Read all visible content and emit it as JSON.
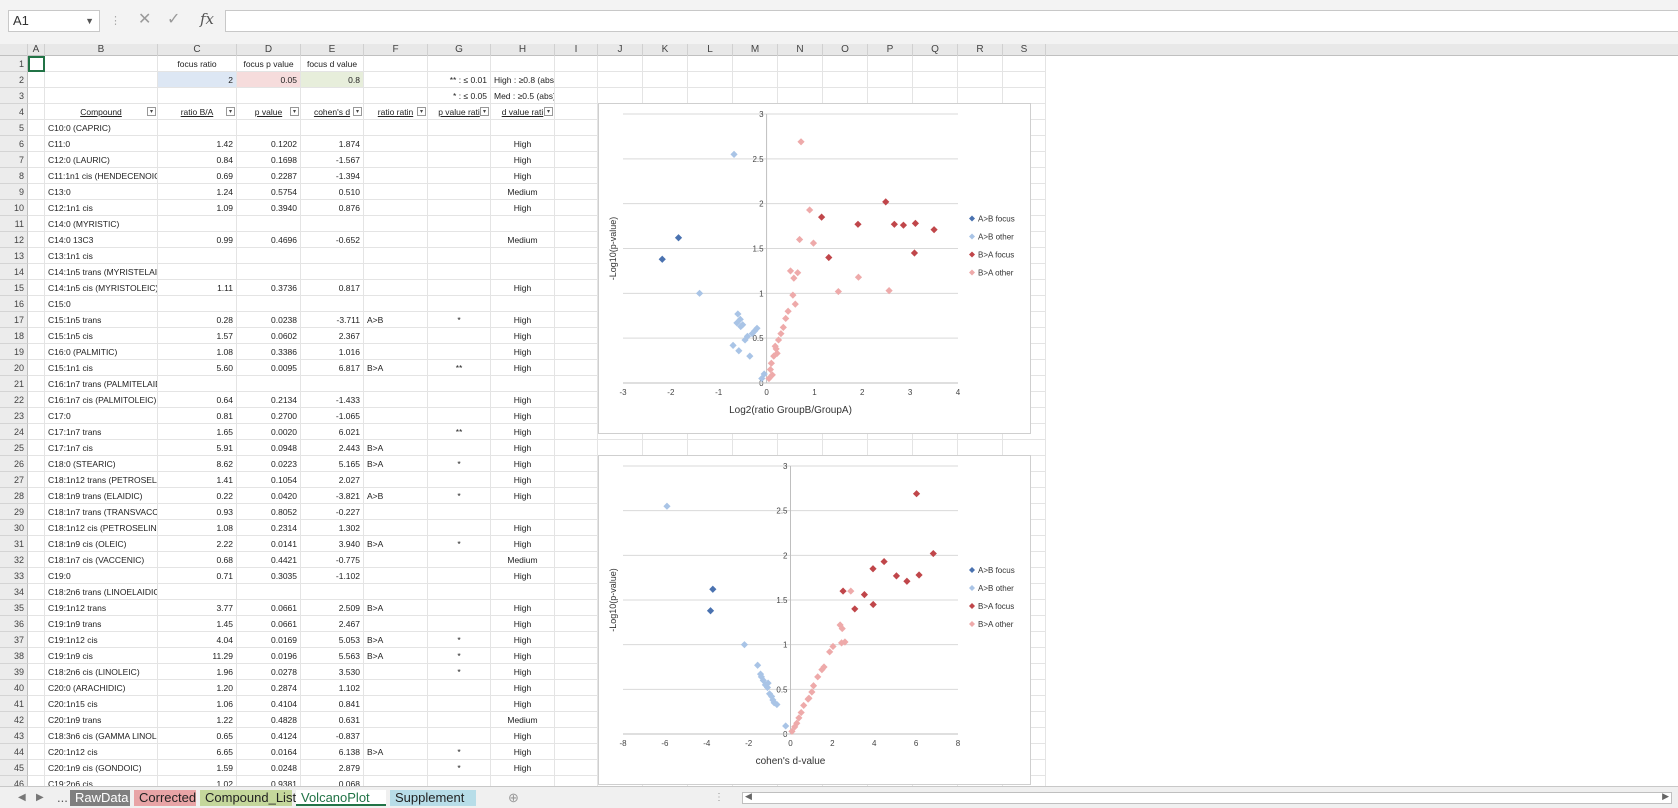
{
  "formula_bar": {
    "name_box": "A1",
    "cancel_icon": "✕",
    "enter_icon": "✓",
    "fx": "fx",
    "formula": ""
  },
  "columns": [
    "A",
    "B",
    "C",
    "D",
    "E",
    "F",
    "G",
    "H",
    "I",
    "J",
    "K",
    "L",
    "M",
    "N",
    "O",
    "P",
    "Q",
    "R",
    "S"
  ],
  "settings": {
    "focus_ratio_label": "focus ratio",
    "focus_p_label": "focus p value",
    "focus_d_label": "focus d value",
    "focus_ratio": "2",
    "focus_p": "0.05",
    "focus_d": "0.8",
    "legend_p1": "** : ≤ 0.01",
    "legend_p2": "* : ≤ 0.05",
    "legend_d1": "High : ≥0.8 (abs)",
    "legend_d2": "Med : ≥0.5 (abs)"
  },
  "colors": {
    "focus_ratio_bg": "#dde7f4",
    "focus_p_bg": "#f6dcdc",
    "focus_d_bg": "#e7eedb",
    "a_focus": "#4a72b0",
    "a_other": "#a9c4e6",
    "b_focus": "#c0464a",
    "b_other": "#eeaaaa"
  },
  "table": {
    "headers": [
      "Compound",
      "ratio B/A",
      "p value",
      "cohen's d",
      "ratio ratin",
      "p value rati",
      "d value rati"
    ],
    "rows": [
      [
        "C10:0 (CAPRIC)",
        "",
        "",
        "",
        "",
        "",
        ""
      ],
      [
        "C11:0",
        "1.42",
        "0.1202",
        "1.874",
        "",
        "",
        "High"
      ],
      [
        "C12:0 (LAURIC)",
        "0.84",
        "0.1698",
        "-1.567",
        "",
        "",
        "High"
      ],
      [
        "C11:1n1 cis (HENDECENOIC)",
        "0.69",
        "0.2287",
        "-1.394",
        "",
        "",
        "High"
      ],
      [
        "C13:0",
        "1.24",
        "0.5754",
        "0.510",
        "",
        "",
        "Medium"
      ],
      [
        "C12:1n1 cis",
        "1.09",
        "0.3940",
        "0.876",
        "",
        "",
        "High"
      ],
      [
        "C14:0 (MYRISTIC)",
        "",
        "",
        "",
        "",
        "",
        ""
      ],
      [
        "C14:0 13C3",
        "0.99",
        "0.4696",
        "-0.652",
        "",
        "",
        "Medium"
      ],
      [
        "C13:1n1 cis",
        "",
        "",
        "",
        "",
        "",
        ""
      ],
      [
        "C14:1n5 trans (MYRISTELAIDIC)",
        "",
        "",
        "",
        "",
        "",
        ""
      ],
      [
        "C14:1n5 cis (MYRISTOLEIC)",
        "1.11",
        "0.3736",
        "0.817",
        "",
        "",
        "High"
      ],
      [
        "C15:0",
        "",
        "",
        "",
        "",
        "",
        ""
      ],
      [
        "C15:1n5 trans",
        "0.28",
        "0.0238",
        "-3.711",
        "A>B",
        "*",
        "High"
      ],
      [
        "C15:1n5 cis",
        "1.57",
        "0.0602",
        "2.367",
        "",
        "",
        "High"
      ],
      [
        "C16:0 (PALMITIC)",
        "1.08",
        "0.3386",
        "1.016",
        "",
        "",
        "High"
      ],
      [
        "C15:1n1 cis",
        "5.60",
        "0.0095",
        "6.817",
        "B>A",
        "**",
        "High"
      ],
      [
        "C16:1n7 trans (PALMITELAIDIC)",
        "",
        "",
        "",
        "",
        "",
        ""
      ],
      [
        "C16:1n7 cis (PALMITOLEIC)",
        "0.64",
        "0.2134",
        "-1.433",
        "",
        "",
        "High"
      ],
      [
        "C17:0",
        "0.81",
        "0.2700",
        "-1.065",
        "",
        "",
        "High"
      ],
      [
        "C17:1n7 trans",
        "1.65",
        "0.0020",
        "6.021",
        "",
        "**",
        "High"
      ],
      [
        "C17:1n7 cis",
        "5.91",
        "0.0948",
        "2.443",
        "B>A",
        "",
        "High"
      ],
      [
        "C18:0 (STEARIC)",
        "8.62",
        "0.0223",
        "5.165",
        "B>A",
        "*",
        "High"
      ],
      [
        "C18:1n12 trans (PETROSELAIDIC)",
        "1.41",
        "0.1054",
        "2.027",
        "",
        "",
        "High"
      ],
      [
        "C18:1n9 trans (ELAIDIC)",
        "0.22",
        "0.0420",
        "-3.821",
        "A>B",
        "*",
        "High"
      ],
      [
        "C18:1n7 trans (TRANSVACCENIC)",
        "0.93",
        "0.8052",
        "-0.227",
        "",
        "",
        ""
      ],
      [
        "C18:1n12 cis (PETROSELINIC)",
        "1.08",
        "0.2314",
        "1.302",
        "",
        "",
        "High"
      ],
      [
        "C18:1n9 cis (OLEIC)",
        "2.22",
        "0.0141",
        "3.940",
        "B>A",
        "*",
        "High"
      ],
      [
        "C18:1n7 cis (VACCENIC)",
        "0.68",
        "0.4421",
        "-0.775",
        "",
        "",
        "Medium"
      ],
      [
        "C19:0",
        "0.71",
        "0.3035",
        "-1.102",
        "",
        "",
        "High"
      ],
      [
        "C18:2n6 trans (LINOELAIDIC)",
        "",
        "",
        "",
        "",
        "",
        ""
      ],
      [
        "C19:1n12 trans",
        "3.77",
        "0.0661",
        "2.509",
        "B>A",
        "",
        "High"
      ],
      [
        "C19:1n9 trans",
        "1.45",
        "0.0661",
        "2.467",
        "",
        "",
        "High"
      ],
      [
        "C19:1n12 cis",
        "4.04",
        "0.0169",
        "5.053",
        "B>A",
        "*",
        "High"
      ],
      [
        "C19:1n9 cis",
        "11.29",
        "0.0196",
        "5.563",
        "B>A",
        "*",
        "High"
      ],
      [
        "C18:2n6 cis (LINOLEIC)",
        "1.96",
        "0.0278",
        "3.530",
        "",
        "*",
        "High"
      ],
      [
        "C20:0 (ARACHIDIC)",
        "1.20",
        "0.2874",
        "1.102",
        "",
        "",
        "High"
      ],
      [
        "C20:1n15 cis",
        "1.06",
        "0.4104",
        "0.841",
        "",
        "",
        "High"
      ],
      [
        "C20:1n9 trans",
        "1.22",
        "0.4828",
        "0.631",
        "",
        "",
        "Medium"
      ],
      [
        "C18:3n6 cis (GAMMA LINOLENIC)",
        "0.65",
        "0.4124",
        "-0.837",
        "",
        "",
        "High"
      ],
      [
        "C20:1n12 cis",
        "6.65",
        "0.0164",
        "6.138",
        "B>A",
        "*",
        "High"
      ],
      [
        "C20:1n9 cis (GONDOIC)",
        "1.59",
        "0.0248",
        "2.879",
        "",
        "*",
        "High"
      ],
      [
        "C19:2n6 cis",
        "1.02",
        "0.9381",
        "0.068",
        "",
        "",
        ""
      ]
    ]
  },
  "chart_data": [
    {
      "type": "scatter",
      "title": "",
      "xlabel": "Log2(ratio GroupB/GroupA)",
      "ylabel": "-Log10(p-value)",
      "xlim": [
        -3,
        4
      ],
      "ylim": [
        0,
        3
      ],
      "xticks": [
        "-3",
        "-2",
        "-1",
        "0",
        "1",
        "2",
        "3",
        "4"
      ],
      "yticks": [
        "0",
        "0.5",
        "1",
        "1.5",
        "2",
        "2.5",
        "3"
      ],
      "grid": true,
      "legend_position": "right",
      "series": [
        {
          "name": "A>B focus",
          "color": "#4a72b0",
          "marker": "diamond",
          "points": [
            [
              -2.18,
              1.38
            ],
            [
              -1.84,
              1.62
            ]
          ]
        },
        {
          "name": "A>B other",
          "color": "#a9c4e6",
          "marker": "diamond",
          "points": [
            [
              -1.4,
              1.0
            ],
            [
              -0.68,
              2.55
            ],
            [
              -0.6,
              0.77
            ],
            [
              -0.55,
              0.71
            ],
            [
              -0.5,
              0.65
            ],
            [
              -0.62,
              0.67
            ],
            [
              -0.58,
              0.36
            ],
            [
              -0.4,
              0.52
            ],
            [
              -0.54,
              0.63
            ],
            [
              -0.7,
              0.42
            ],
            [
              -0.35,
              0.3
            ],
            [
              -0.1,
              0.05
            ],
            [
              -0.05,
              0.1
            ],
            [
              -0.3,
              0.55
            ],
            [
              -0.25,
              0.58
            ],
            [
              -0.2,
              0.61
            ],
            [
              -0.45,
              0.48
            ]
          ]
        },
        {
          "name": "B>A focus",
          "color": "#c0464a",
          "marker": "diamond",
          "points": [
            [
              2.49,
              2.02
            ],
            [
              3.11,
              1.78
            ],
            [
              2.67,
              1.77
            ],
            [
              3.5,
              1.71
            ],
            [
              1.91,
              1.77
            ],
            [
              1.15,
              1.85
            ],
            [
              2.86,
              1.76
            ],
            [
              3.09,
              1.45
            ],
            [
              1.3,
              1.4
            ]
          ]
        },
        {
          "name": "B>A other",
          "color": "#eeaaaa",
          "marker": "diamond",
          "points": [
            [
              0.72,
              2.69
            ],
            [
              0.9,
              1.93
            ],
            [
              0.98,
              1.56
            ],
            [
              0.69,
              1.6
            ],
            [
              0.65,
              1.23
            ],
            [
              0.5,
              1.25
            ],
            [
              0.55,
              0.98
            ],
            [
              0.6,
              0.88
            ],
            [
              0.45,
              0.8
            ],
            [
              0.35,
              0.62
            ],
            [
              0.3,
              0.55
            ],
            [
              0.25,
              0.48
            ],
            [
              0.2,
              0.38
            ],
            [
              0.15,
              0.3
            ],
            [
              0.1,
              0.22
            ],
            [
              0.08,
              0.15
            ],
            [
              1.5,
              1.02
            ],
            [
              1.92,
              1.18
            ],
            [
              2.56,
              1.03
            ],
            [
              0.57,
              1.17
            ],
            [
              0.05,
              0.05
            ],
            [
              0.12,
              0.09
            ],
            [
              0.4,
              0.72
            ],
            [
              0.18,
              0.41
            ],
            [
              0.22,
              0.33
            ]
          ]
        }
      ]
    },
    {
      "type": "scatter",
      "title": "",
      "xlabel": "cohen's d-value",
      "ylabel": "-Log10(p-value)",
      "xlim": [
        -8,
        8
      ],
      "ylim": [
        0,
        3
      ],
      "xticks": [
        "-8",
        "-6",
        "-4",
        "-2",
        "0",
        "2",
        "4",
        "6",
        "8"
      ],
      "yticks": [
        "0",
        "0.5",
        "1",
        "1.5",
        "2",
        "2.5",
        "3"
      ],
      "grid": true,
      "legend_position": "right",
      "series": [
        {
          "name": "A>B focus",
          "color": "#4a72b0",
          "marker": "diamond",
          "points": [
            [
              -3.82,
              1.38
            ],
            [
              -3.71,
              1.62
            ]
          ]
        },
        {
          "name": "A>B other",
          "color": "#a9c4e6",
          "marker": "diamond",
          "points": [
            [
              -5.9,
              2.55
            ],
            [
              -2.2,
              1.0
            ],
            [
              -1.57,
              0.77
            ],
            [
              -1.43,
              0.67
            ],
            [
              -1.39,
              0.64
            ],
            [
              -1.1,
              0.52
            ],
            [
              -1.07,
              0.57
            ],
            [
              -0.84,
              0.38
            ],
            [
              -0.78,
              0.35
            ],
            [
              -0.65,
              0.33
            ],
            [
              -0.23,
              0.09
            ],
            [
              -1.3,
              0.6
            ],
            [
              -1.2,
              0.55
            ],
            [
              -1.0,
              0.45
            ],
            [
              -0.9,
              0.42
            ]
          ]
        },
        {
          "name": "B>A focus",
          "color": "#c0464a",
          "marker": "diamond",
          "points": [
            [
              6.02,
              2.69
            ],
            [
              6.82,
              2.02
            ],
            [
              4.47,
              1.93
            ],
            [
              3.94,
              1.85
            ],
            [
              5.06,
              1.77
            ],
            [
              5.56,
              1.71
            ],
            [
              6.14,
              1.78
            ],
            [
              3.53,
              1.56
            ],
            [
              2.51,
              1.6
            ],
            [
              3.07,
              1.4
            ],
            [
              3.95,
              1.45
            ]
          ]
        },
        {
          "name": "B>A other",
          "color": "#eeaaaa",
          "marker": "diamond",
          "points": [
            [
              1.87,
              0.92
            ],
            [
              2.37,
              1.22
            ],
            [
              2.47,
              1.18
            ],
            [
              2.03,
              0.98
            ],
            [
              2.44,
              1.02
            ],
            [
              2.88,
              1.6
            ],
            [
              1.3,
              0.64
            ],
            [
              1.1,
              0.54
            ],
            [
              1.02,
              0.47
            ],
            [
              0.88,
              0.4
            ],
            [
              0.84,
              0.39
            ],
            [
              0.63,
              0.32
            ],
            [
              0.51,
              0.24
            ],
            [
              0.07,
              0.03
            ],
            [
              2.6,
              1.03
            ],
            [
              1.6,
              0.75
            ],
            [
              1.5,
              0.72
            ],
            [
              0.3,
              0.12
            ],
            [
              0.2,
              0.08
            ],
            [
              0.4,
              0.18
            ]
          ]
        }
      ]
    }
  ],
  "sheet_tabs": [
    {
      "label": "...",
      "bg": "#f0f0f0",
      "color": "#555"
    },
    {
      "label": "RawData",
      "bg": "#7f7f7f",
      "color": "#ffffff"
    },
    {
      "label": "Corrected",
      "bg": "#e8a4a6",
      "color": "#222"
    },
    {
      "label": "Compound_List",
      "bg": "#c4d79b",
      "color": "#222"
    },
    {
      "label": "VolcanoPlot",
      "bg": "#ffffff",
      "color": "#217346"
    },
    {
      "label": "Supplement",
      "bg": "#b7dde8",
      "color": "#222"
    }
  ],
  "nav": {
    "prev": "◀",
    "next": "▶",
    "add_sheet": "⊕",
    "scroll_left": "◀",
    "scroll_right": "▶"
  }
}
